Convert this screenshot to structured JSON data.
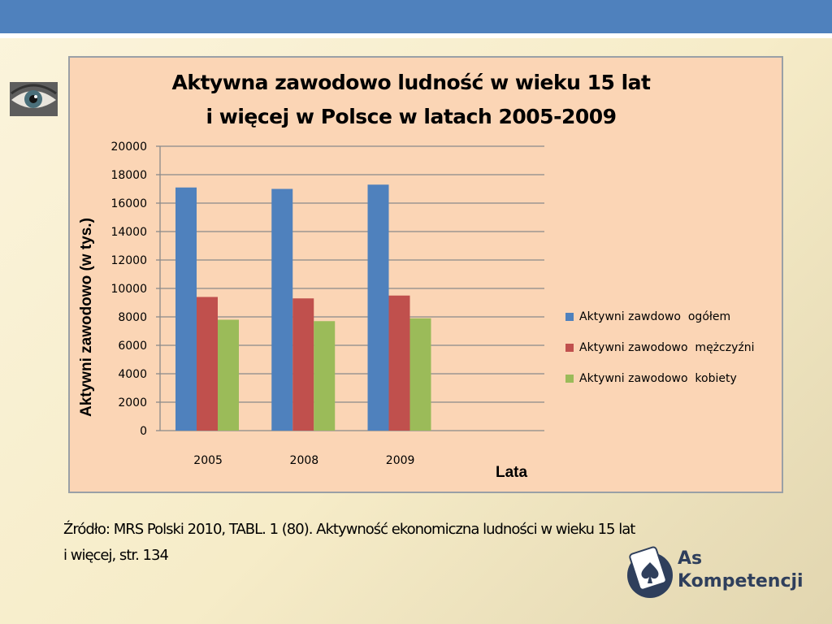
{
  "slide": {
    "source_line1": "Źródło: MRS Polski 2010, TABL. 1 (80). Aktywność ekonomiczna ludności w wieku 15 lat",
    "source_line2": "i więcej, str. 134",
    "logo_line1": "As",
    "logo_line2": "Kompetencji"
  },
  "colors": {
    "topbar": "#4f81bd",
    "chart_bg": "#fbd5b5",
    "series": [
      "#4f81bd",
      "#c0504d",
      "#9bbb59"
    ]
  },
  "chart_data": {
    "type": "bar",
    "title_line1": "Aktywna zawodowo ludność w wieku 15 lat",
    "title_line2": "i więcej w Polsce w latach 2005-2009",
    "xlabel": "Lata",
    "ylabel": "Aktywni zawodowo (w tys.)",
    "categories": [
      "2005",
      "2008",
      "2009"
    ],
    "ylim": [
      0,
      20000
    ],
    "yticks": [
      "0",
      "2000",
      "4000",
      "6000",
      "8000",
      "10000",
      "12000",
      "14000",
      "16000",
      "18000",
      "20000"
    ],
    "grid": true,
    "legend_position": "right",
    "series": [
      {
        "name": "Aktywni zawdowo  ogółem",
        "values": [
          17100,
          17000,
          17300
        ]
      },
      {
        "name": "Aktywni zawodowo  mężczyźni",
        "values": [
          9400,
          9300,
          9500
        ]
      },
      {
        "name": "Aktywni zawodowo  kobiety",
        "values": [
          7800,
          7700,
          7900
        ]
      }
    ]
  }
}
